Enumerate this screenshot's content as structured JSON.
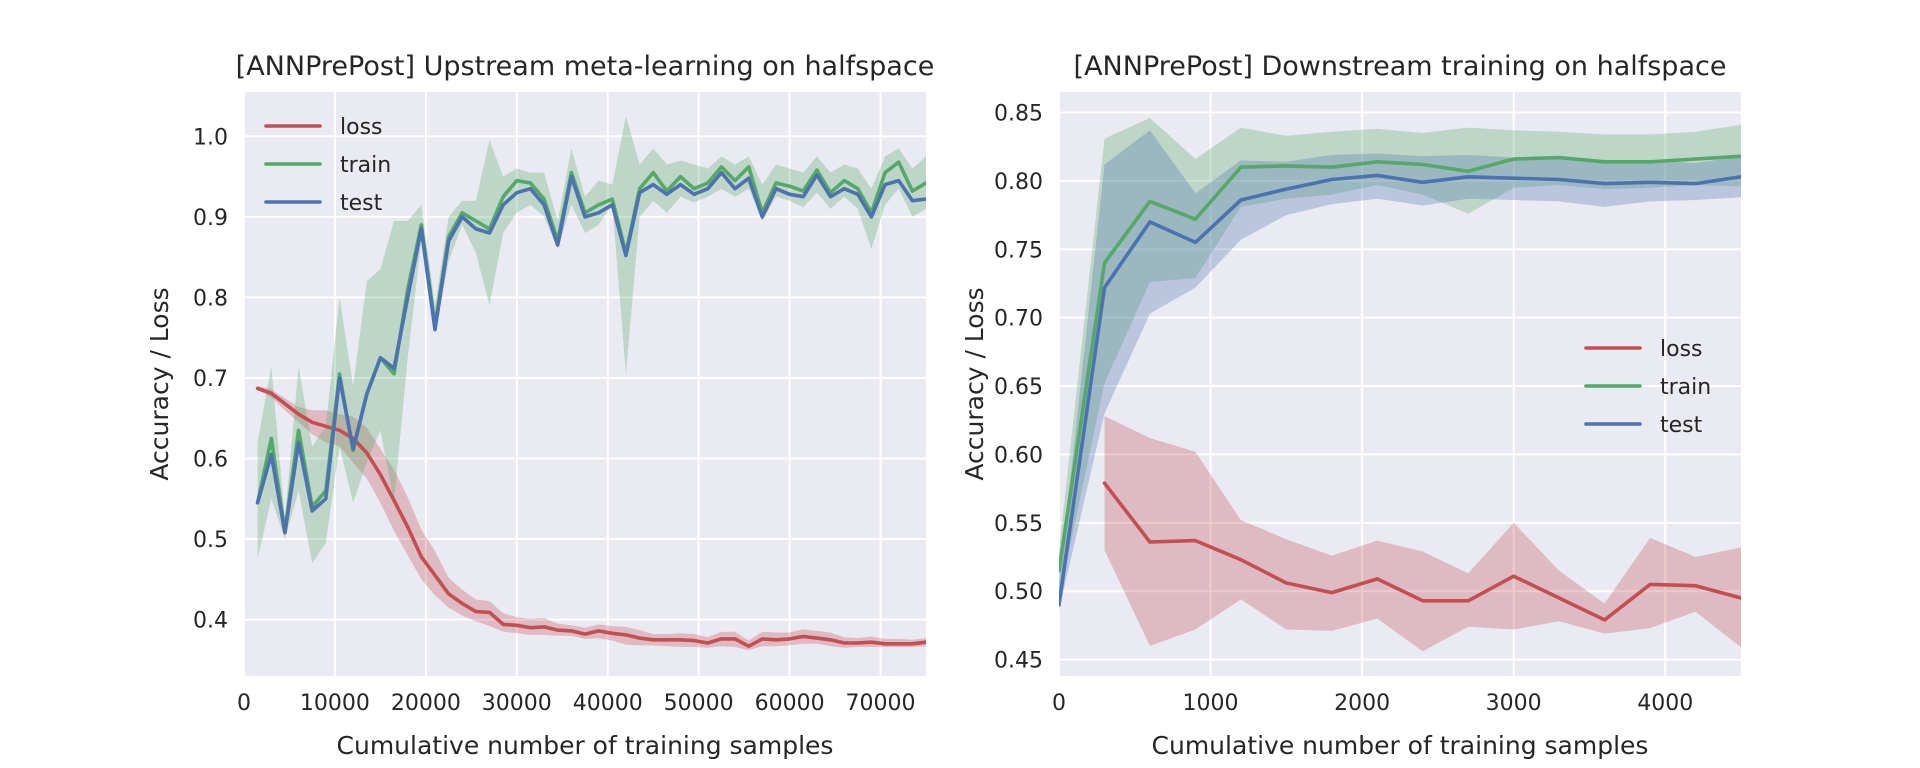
{
  "colors": {
    "loss": "#c44e52",
    "train": "#55a868",
    "test": "#4c72b0",
    "axes_bg": "#eaeaf2",
    "grid": "#ffffff"
  },
  "chart_data": [
    {
      "type": "line",
      "title": "[ANNPrePost] Upstream meta-learning on halfspace",
      "xlabel": "Cumulative number of training samples",
      "ylabel": "Accuracy / Loss",
      "xlim": [
        0,
        75000
      ],
      "ylim": [
        0.33,
        1.055
      ],
      "xticks": [
        0,
        10000,
        20000,
        30000,
        40000,
        50000,
        60000,
        70000
      ],
      "yticks": [
        0.4,
        0.5,
        0.6,
        0.7,
        0.8,
        0.9,
        1.0
      ],
      "xtick_labels": [
        "0",
        "10000",
        "20000",
        "30000",
        "40000",
        "50000",
        "60000",
        "70000"
      ],
      "ytick_labels": [
        "0.4",
        "0.5",
        "0.6",
        "0.7",
        "0.8",
        "0.9",
        "1.0"
      ],
      "grid": true,
      "legend": "top-left",
      "x": [
        1500,
        3000,
        4500,
        6000,
        7500,
        9000,
        10500,
        12000,
        13500,
        15000,
        16500,
        18000,
        19500,
        21000,
        22500,
        24000,
        25500,
        27000,
        28500,
        30000,
        31500,
        33000,
        34500,
        36000,
        37500,
        39000,
        40500,
        42000,
        43500,
        45000,
        46500,
        48000,
        49500,
        51000,
        52500,
        54000,
        55500,
        57000,
        58500,
        60000,
        61500,
        63000,
        64500,
        66000,
        67500,
        69000,
        70500,
        72000,
        73500,
        75000
      ],
      "series": [
        {
          "name": "loss",
          "values": [
            0.687,
            0.681,
            0.668,
            0.655,
            0.645,
            0.64,
            0.635,
            0.625,
            0.607,
            0.58,
            0.548,
            0.515,
            0.478,
            0.455,
            0.432,
            0.42,
            0.41,
            0.409,
            0.394,
            0.393,
            0.39,
            0.391,
            0.387,
            0.386,
            0.382,
            0.386,
            0.383,
            0.381,
            0.377,
            0.375,
            0.375,
            0.375,
            0.374,
            0.371,
            0.376,
            0.376,
            0.367,
            0.376,
            0.375,
            0.376,
            0.379,
            0.377,
            0.375,
            0.371,
            0.371,
            0.372,
            0.37,
            0.37,
            0.37,
            0.372
          ],
          "lower": [
            0.685,
            0.676,
            0.66,
            0.645,
            0.63,
            0.62,
            0.615,
            0.595,
            0.575,
            0.545,
            0.51,
            0.48,
            0.45,
            0.43,
            0.415,
            0.405,
            0.398,
            0.392,
            0.385,
            0.383,
            0.381,
            0.381,
            0.38,
            0.38,
            0.376,
            0.377,
            0.374,
            0.369,
            0.368,
            0.368,
            0.367,
            0.366,
            0.366,
            0.365,
            0.367,
            0.366,
            0.362,
            0.367,
            0.367,
            0.368,
            0.37,
            0.37,
            0.367,
            0.365,
            0.366,
            0.366,
            0.366,
            0.366,
            0.366,
            0.367
          ],
          "upper": [
            0.69,
            0.686,
            0.675,
            0.664,
            0.66,
            0.66,
            0.655,
            0.652,
            0.638,
            0.612,
            0.586,
            0.552,
            0.512,
            0.485,
            0.452,
            0.437,
            0.425,
            0.423,
            0.408,
            0.403,
            0.401,
            0.402,
            0.395,
            0.393,
            0.39,
            0.394,
            0.392,
            0.391,
            0.387,
            0.382,
            0.382,
            0.383,
            0.382,
            0.378,
            0.385,
            0.385,
            0.374,
            0.385,
            0.384,
            0.384,
            0.388,
            0.386,
            0.384,
            0.378,
            0.377,
            0.379,
            0.376,
            0.376,
            0.375,
            0.377
          ]
        },
        {
          "name": "train",
          "values": [
            0.545,
            0.625,
            0.51,
            0.635,
            0.54,
            0.56,
            0.705,
            0.61,
            0.68,
            0.725,
            0.705,
            0.81,
            0.89,
            0.765,
            0.875,
            0.905,
            0.895,
            0.885,
            0.925,
            0.945,
            0.942,
            0.922,
            0.87,
            0.955,
            0.905,
            0.915,
            0.922,
            0.855,
            0.935,
            0.955,
            0.932,
            0.95,
            0.935,
            0.942,
            0.962,
            0.945,
            0.962,
            0.905,
            0.942,
            0.938,
            0.932,
            0.958,
            0.93,
            0.945,
            0.935,
            0.905,
            0.955,
            0.968,
            0.932,
            0.942
          ],
          "lower": [
            0.475,
            0.55,
            0.5,
            0.56,
            0.47,
            0.495,
            0.615,
            0.545,
            0.595,
            0.635,
            0.545,
            0.725,
            0.87,
            0.755,
            0.845,
            0.89,
            0.855,
            0.79,
            0.88,
            0.905,
            0.915,
            0.9,
            0.86,
            0.915,
            0.88,
            0.89,
            0.915,
            0.705,
            0.9,
            0.92,
            0.905,
            0.925,
            0.918,
            0.925,
            0.935,
            0.925,
            0.935,
            0.895,
            0.925,
            0.92,
            0.912,
            0.93,
            0.91,
            0.925,
            0.91,
            0.86,
            0.915,
            0.935,
            0.9,
            0.91
          ],
          "upper": [
            0.62,
            0.715,
            0.525,
            0.715,
            0.615,
            0.64,
            0.8,
            0.69,
            0.82,
            0.835,
            0.895,
            0.895,
            0.915,
            0.79,
            0.9,
            0.92,
            0.92,
            0.995,
            0.95,
            0.96,
            0.955,
            0.955,
            0.895,
            0.985,
            0.925,
            0.945,
            0.94,
            1.025,
            0.965,
            0.985,
            0.965,
            0.97,
            0.965,
            0.96,
            0.975,
            0.965,
            0.975,
            0.94,
            0.965,
            0.96,
            0.955,
            0.975,
            0.955,
            0.965,
            0.96,
            0.935,
            0.975,
            0.985,
            0.96,
            0.975
          ]
        },
        {
          "name": "test",
          "values": [
            0.545,
            0.605,
            0.508,
            0.62,
            0.535,
            0.55,
            0.7,
            0.612,
            0.68,
            0.725,
            0.712,
            0.8,
            0.885,
            0.76,
            0.87,
            0.9,
            0.885,
            0.88,
            0.915,
            0.93,
            0.935,
            0.915,
            0.865,
            0.95,
            0.9,
            0.905,
            0.915,
            0.852,
            0.93,
            0.94,
            0.928,
            0.94,
            0.928,
            0.935,
            0.955,
            0.935,
            0.948,
            0.9,
            0.935,
            0.928,
            0.925,
            0.952,
            0.925,
            0.935,
            0.928,
            0.9,
            0.94,
            0.945,
            0.92,
            0.922
          ]
        }
      ]
    },
    {
      "type": "line",
      "title": "[ANNPrePost] Downstream training on halfspace",
      "xlabel": "Cumulative number of training samples",
      "ylabel": "Accuracy / Loss",
      "xlim": [
        0,
        4500
      ],
      "ylim": [
        0.438,
        0.865
      ],
      "xticks": [
        0,
        1000,
        2000,
        3000,
        4000
      ],
      "yticks": [
        0.45,
        0.5,
        0.55,
        0.6,
        0.65,
        0.7,
        0.75,
        0.8,
        0.85
      ],
      "xtick_labels": [
        "0",
        "1000",
        "2000",
        "3000",
        "4000"
      ],
      "ytick_labels": [
        "0.45",
        "0.50",
        "0.55",
        "0.60",
        "0.65",
        "0.70",
        "0.75",
        "0.80",
        "0.85"
      ],
      "grid": true,
      "legend": "center-right",
      "x": [
        0,
        300,
        600,
        900,
        1200,
        1500,
        1800,
        2100,
        2400,
        2700,
        3000,
        3300,
        3600,
        3900,
        4200,
        4500
      ],
      "series": [
        {
          "name": "loss",
          "x": [
            300,
            600,
            900,
            1200,
            1500,
            1800,
            2100,
            2400,
            2700,
            3000,
            3300,
            3600,
            3900,
            4200,
            4500
          ],
          "values": [
            0.579,
            0.536,
            0.537,
            0.523,
            0.506,
            0.499,
            0.509,
            0.493,
            0.493,
            0.511,
            0.495,
            0.479,
            0.505,
            0.504,
            0.495
          ],
          "lower": [
            0.53,
            0.46,
            0.472,
            0.494,
            0.472,
            0.471,
            0.48,
            0.456,
            0.474,
            0.472,
            0.478,
            0.469,
            0.473,
            0.485,
            0.459
          ],
          "upper": [
            0.628,
            0.612,
            0.602,
            0.552,
            0.538,
            0.526,
            0.537,
            0.529,
            0.513,
            0.55,
            0.515,
            0.491,
            0.539,
            0.525,
            0.532
          ]
        },
        {
          "name": "train",
          "values": [
            0.515,
            0.74,
            0.785,
            0.772,
            0.81,
            0.811,
            0.81,
            0.814,
            0.812,
            0.807,
            0.816,
            0.817,
            0.814,
            0.814,
            0.816,
            0.818
          ],
          "lower": [
            0.495,
            0.652,
            0.726,
            0.729,
            0.781,
            0.787,
            0.79,
            0.797,
            0.79,
            0.776,
            0.795,
            0.797,
            0.794,
            0.795,
            0.797,
            0.796
          ],
          "upper": [
            0.53,
            0.831,
            0.846,
            0.816,
            0.839,
            0.833,
            0.836,
            0.838,
            0.835,
            0.839,
            0.837,
            0.836,
            0.834,
            0.834,
            0.836,
            0.841
          ]
        },
        {
          "name": "test",
          "values": [
            0.49,
            0.722,
            0.77,
            0.755,
            0.786,
            0.794,
            0.801,
            0.804,
            0.799,
            0.803,
            0.802,
            0.801,
            0.798,
            0.799,
            0.798,
            0.803
          ],
          "lower": [
            0.486,
            0.63,
            0.703,
            0.722,
            0.757,
            0.775,
            0.783,
            0.787,
            0.782,
            0.787,
            0.786,
            0.785,
            0.781,
            0.785,
            0.786,
            0.788
          ],
          "upper": [
            0.505,
            0.812,
            0.837,
            0.791,
            0.815,
            0.814,
            0.819,
            0.82,
            0.818,
            0.819,
            0.817,
            0.816,
            0.814,
            0.815,
            0.813,
            0.818
          ]
        }
      ]
    }
  ]
}
